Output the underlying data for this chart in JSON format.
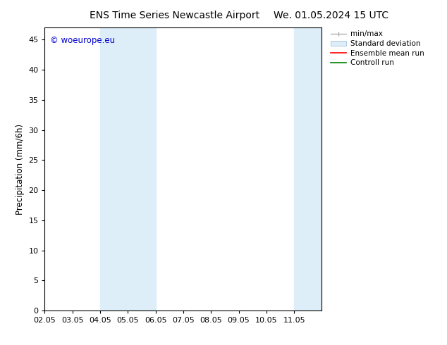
{
  "title_left": "ENS Time Series Newcastle Airport",
  "title_right": "We. 01.05.2024 15 UTC",
  "ylabel": "Precipitation (mm/6h)",
  "watermark": "© woeurope.eu",
  "xlim_min": 1,
  "xlim_max": 11,
  "ylim_min": 0,
  "ylim_max": 47,
  "yticks": [
    0,
    5,
    10,
    15,
    20,
    25,
    30,
    35,
    40,
    45
  ],
  "xtick_labels": [
    "02.05",
    "03.05",
    "04.05",
    "05.05",
    "06.05",
    "07.05",
    "08.05",
    "09.05",
    "10.05",
    "11.05"
  ],
  "xtick_positions": [
    1,
    2,
    3,
    4,
    5,
    6,
    7,
    8,
    9,
    10
  ],
  "shaded_bands": [
    {
      "x_start": 3.0,
      "x_end": 4.0,
      "color": "#ddeef8"
    },
    {
      "x_start": 4.0,
      "x_end": 5.0,
      "color": "#ddeef8"
    },
    {
      "x_start": 10.0,
      "x_end": 10.5,
      "color": "#ddeef8"
    },
    {
      "x_start": 10.5,
      "x_end": 11.0,
      "color": "#ddeef8"
    }
  ],
  "legend_items": [
    {
      "label": "min/max",
      "color": "#b0b0b0",
      "style": "line_with_caps"
    },
    {
      "label": "Standard deviation",
      "color": "#d0d8e8",
      "style": "filled"
    },
    {
      "label": "Ensemble mean run",
      "color": "#ff0000",
      "style": "line"
    },
    {
      "label": "Controll run",
      "color": "#008000",
      "style": "line"
    }
  ],
  "background_color": "#ffffff",
  "plot_bg_color": "#ffffff",
  "spine_color": "#000000",
  "tick_color": "#000000",
  "label_color": "#000000",
  "watermark_color": "#0000cc",
  "title_fontsize": 10,
  "label_fontsize": 8.5,
  "tick_fontsize": 8,
  "watermark_fontsize": 8.5,
  "legend_fontsize": 7.5
}
